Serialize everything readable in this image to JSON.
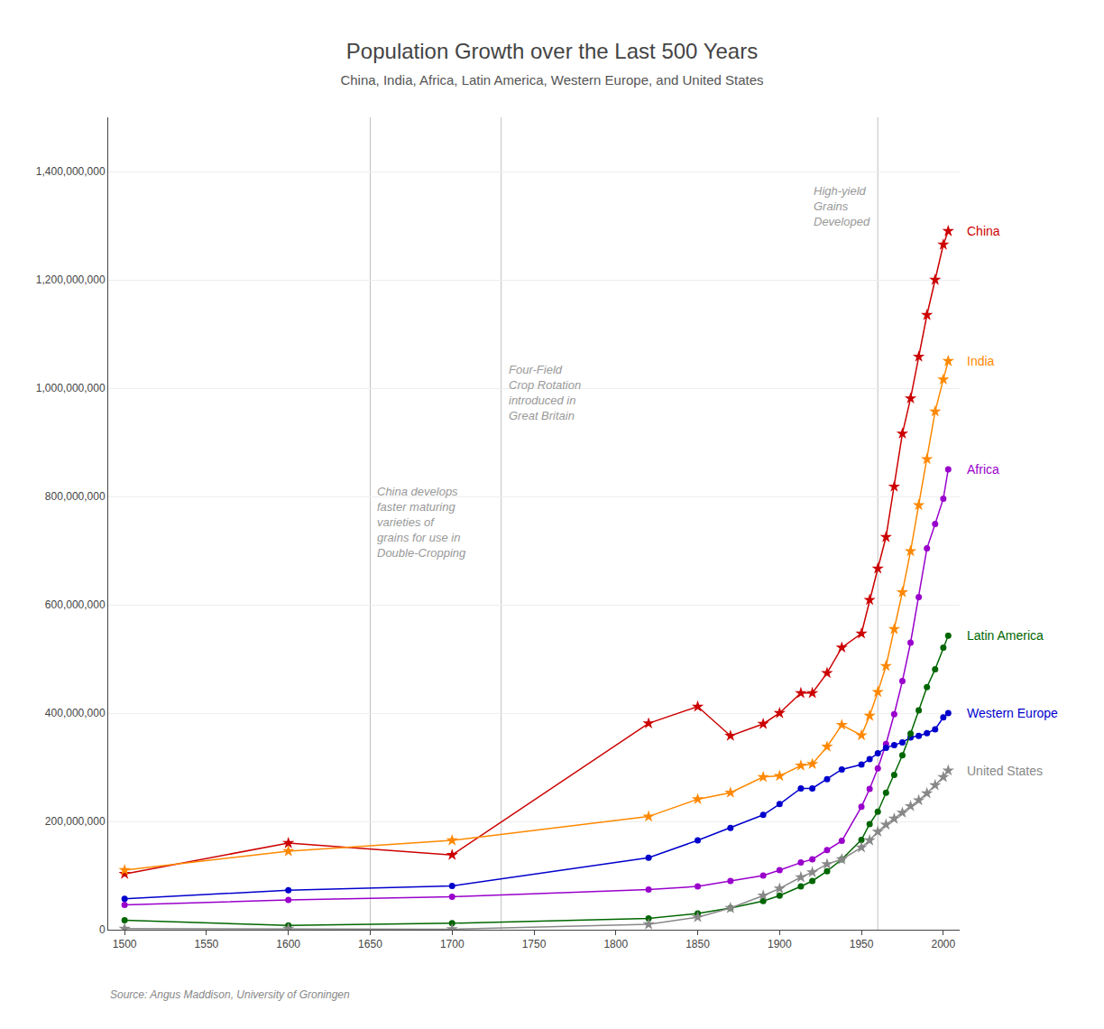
{
  "chart_data": {
    "type": "line",
    "title": "Population Growth over the Last 500 Years",
    "subtitle": "China, India, Africa, Latin America, Western Europe, and United States",
    "source": "Source: Angus Maddison, University of Groningen",
    "xlim": [
      1490,
      2010
    ],
    "xticks": [
      1500,
      1550,
      1600,
      1650,
      1700,
      1750,
      1800,
      1850,
      1900,
      1950,
      2000
    ],
    "ylim": [
      0,
      1500000000
    ],
    "yticks": [
      0,
      {
        "value": 200000000,
        "label": "200,000,000"
      },
      {
        "value": 400000000,
        "label": "400,000,000"
      },
      {
        "value": 600000000,
        "label": "600,000,000"
      },
      {
        "value": 800000000,
        "label": "800,000,000"
      },
      {
        "value": 1000000000,
        "label": "1,000,000,000"
      },
      {
        "value": 1200000000,
        "label": "1,200,000,000"
      },
      {
        "value": 1400000000,
        "label": "1,400,000,000"
      }
    ],
    "grid": "y",
    "annotations": [
      {
        "x": 1650,
        "text": "China develops\nfaster maturing\nvarieties of\ngrains for use in\nDouble-Cropping"
      },
      {
        "x": 1730,
        "text": "Four-Field\nCrop Rotation\nintroduced in\nGreat Britain"
      },
      {
        "x": 1960,
        "text": "High-yield\nGrains\nDeveloped"
      }
    ],
    "x": [
      1500,
      1600,
      1700,
      1820,
      1850,
      1870,
      1890,
      1900,
      1913,
      1920,
      1929,
      1938,
      1950,
      1955,
      1960,
      1965,
      1970,
      1975,
      1980,
      1985,
      1990,
      1995,
      2000,
      2003
    ],
    "series": [
      {
        "name": "China",
        "color": "#cc0000",
        "marker": "star",
        "values": [
          103000000,
          160000000,
          138000000,
          381000000,
          412000000,
          358000000,
          380000000,
          400000000,
          437000000,
          437000000,
          474000000,
          521000000,
          547000000,
          609000000,
          667000000,
          725000000,
          818000000,
          916000000,
          981000000,
          1058000000,
          1135000000,
          1200000000,
          1265000000,
          1290000000
        ]
      },
      {
        "name": "India",
        "color": "#ff8800",
        "marker": "star",
        "values": [
          110000000,
          145000000,
          165000000,
          209000000,
          241000000,
          253000000,
          282000000,
          284000000,
          303000000,
          306000000,
          338000000,
          378000000,
          359000000,
          395000000,
          439000000,
          487000000,
          555000000,
          623000000,
          699000000,
          784000000,
          869000000,
          957000000,
          1016000000,
          1050000000
        ]
      },
      {
        "name": "Africa",
        "color": "#9900cc",
        "marker": "circle",
        "values": [
          46000000,
          55000000,
          61000000,
          74000000,
          80000000,
          90000000,
          100000000,
          110000000,
          124000000,
          130000000,
          147000000,
          164000000,
          227000000,
          260000000,
          298000000,
          343000000,
          398000000,
          459000000,
          530000000,
          614000000,
          704000000,
          749000000,
          796000000,
          850000000
        ]
      },
      {
        "name": "Western Europe",
        "color": "#0000cc",
        "marker": "circle",
        "values": [
          57000000,
          73000000,
          81000000,
          133000000,
          165000000,
          188000000,
          212000000,
          232000000,
          261000000,
          261000000,
          278000000,
          296000000,
          305000000,
          315000000,
          326000000,
          336000000,
          341000000,
          346000000,
          355000000,
          358000000,
          363000000,
          370000000,
          392000000,
          400000000
        ]
      },
      {
        "name": "Latin America",
        "color": "#006600",
        "marker": "circle",
        "values": [
          17500000,
          8000000,
          12000000,
          21000000,
          30000000,
          40000000,
          53000000,
          63000000,
          80000000,
          90000000,
          108000000,
          130000000,
          166000000,
          195000000,
          218000000,
          253000000,
          286000000,
          322000000,
          362000000,
          405000000,
          448000000,
          481000000,
          521000000,
          543000000
        ]
      },
      {
        "name": "United States",
        "color": "#888888",
        "marker": "star",
        "values": [
          2000000,
          2000000,
          1000000,
          10000000,
          23000000,
          40000000,
          63000000,
          76000000,
          97000000,
          106000000,
          121000000,
          130000000,
          152000000,
          165000000,
          181000000,
          194000000,
          205000000,
          216000000,
          228000000,
          239000000,
          252000000,
          267000000,
          282000000,
          294000000
        ]
      }
    ]
  }
}
